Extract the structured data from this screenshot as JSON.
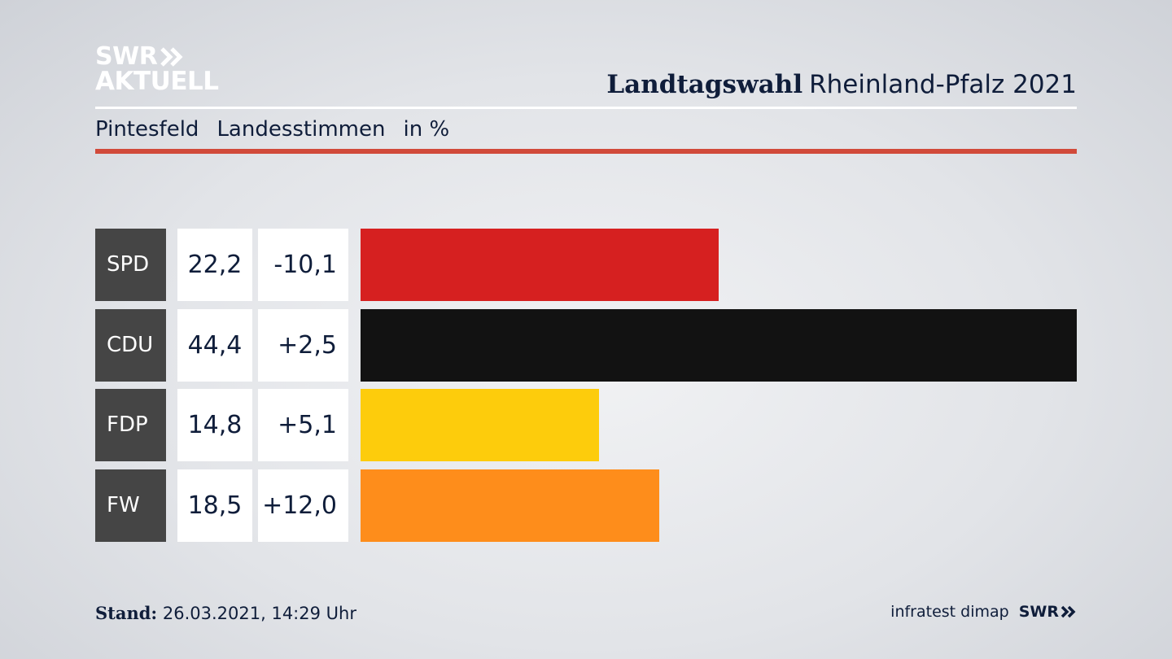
{
  "brand": {
    "logo_line1": "SWR",
    "logo_line2": "AKTUELL"
  },
  "header": {
    "title_bold": "Landtagswahl",
    "title_rest": "Rheinland-Pfalz 2021"
  },
  "subheader": {
    "place": "Pintesfeld",
    "metric": "Landesstimmen",
    "unit": "in %"
  },
  "footer": {
    "stand_label": "Stand:",
    "stand_value": "26.03.2021, 14:29 Uhr",
    "source": "infratest dimap",
    "brand_small": "SWR"
  },
  "chart_data": {
    "type": "bar",
    "orientation": "horizontal",
    "categories": [
      "SPD",
      "CDU",
      "FDP",
      "FW"
    ],
    "values": [
      22.2,
      44.4,
      14.8,
      18.5
    ],
    "value_labels": [
      "22,2",
      "44,4",
      "14,8",
      "18,5"
    ],
    "change_labels": [
      "-10,1",
      "+2,5",
      "+5,1",
      "+12,0"
    ],
    "colors": [
      "#d62020",
      "#121212",
      "#fdcc0c",
      "#fe8d1b"
    ],
    "unit": "in %",
    "xlim": [
      0,
      44.4
    ]
  }
}
